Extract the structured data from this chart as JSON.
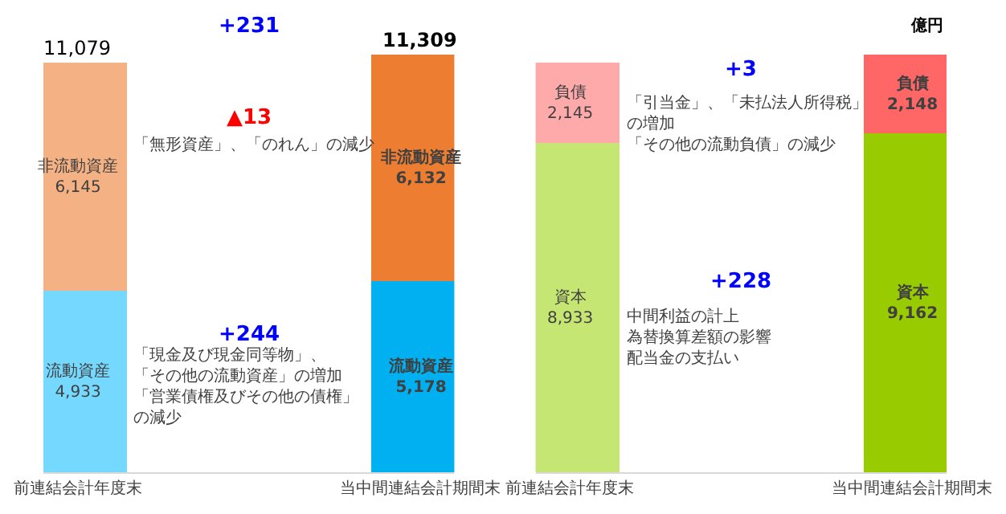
{
  "chart_data": [
    {
      "type": "bar",
      "stacked": true,
      "categories": [
        "前連結会計年度末",
        null,
        "当中間連結会計期間末"
      ],
      "series": [
        {
          "name": "流動資産",
          "colors": [
            "#75d9ff",
            null,
            "#00b0f0"
          ],
          "values": [
            4933,
            null,
            5178
          ],
          "value_labels": [
            "4,933",
            null,
            "5,178"
          ]
        },
        {
          "name": "非流動資産",
          "colors": [
            "#f4b183",
            null,
            "#ed7d31"
          ],
          "values": [
            6145,
            null,
            6132
          ],
          "value_labels": [
            "6,145",
            null,
            "6,132"
          ]
        }
      ],
      "totals": [
        "11,079",
        null,
        "11,309"
      ],
      "annotations": [
        "+231",
        "▲13",
        "「無形資産」、「のれん」の減少",
        "+244",
        "「現金及び現金同等物」、",
        "「その他の流動資産」の増加",
        "「営業債権及びその他の債権」",
        "の減少"
      ]
    },
    {
      "type": "bar",
      "stacked": true,
      "categories": [
        "前連結会計年度末",
        null,
        "当中間連結会計期間末"
      ],
      "series": [
        {
          "name": "資本",
          "colors": [
            "#c5e673",
            null,
            "#99cc00"
          ],
          "values": [
            8933,
            null,
            9162
          ],
          "value_labels": [
            "8,933",
            null,
            "9,162"
          ]
        },
        {
          "name": "負債",
          "colors": [
            "#ffaaaa",
            null,
            "#ff6666"
          ],
          "values": [
            2145,
            null,
            2148
          ],
          "value_labels": [
            "2,145",
            null,
            "2,148"
          ]
        }
      ],
      "annotations": [
        "億円",
        "+3",
        "「引当金」、「未払法人所得税」",
        "の増加",
        "「その他の流動負債」の減少",
        "+228",
        "中間利益の計上",
        "為替換算差額の影響",
        "配当金の支払い"
      ]
    }
  ]
}
